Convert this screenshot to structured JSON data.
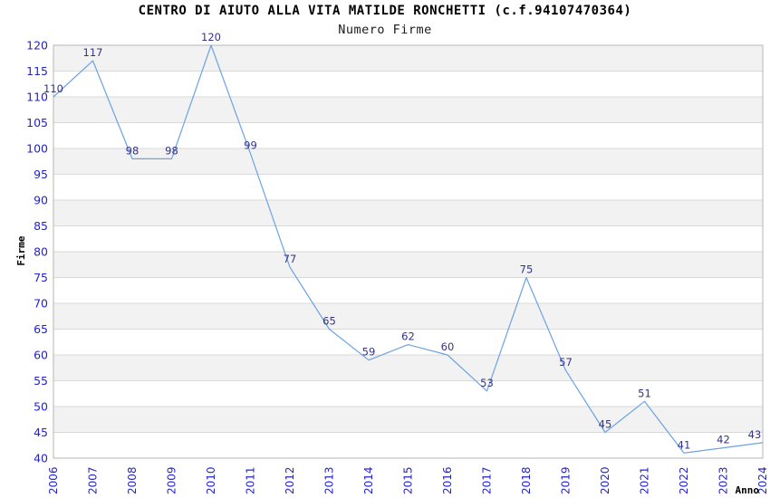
{
  "chart_data": {
    "type": "line",
    "title": "CENTRO DI AIUTO ALLA VITA MATILDE RONCHETTI (c.f.94107470364)",
    "subtitle": "Numero Firme",
    "xlabel": "Anno",
    "ylabel": "Firme",
    "categories": [
      "2006",
      "2007",
      "2008",
      "2009",
      "2010",
      "2011",
      "2012",
      "2013",
      "2014",
      "2015",
      "2016",
      "2017",
      "2018",
      "2019",
      "2020",
      "2021",
      "2022",
      "2023",
      "2024"
    ],
    "values": [
      110,
      117,
      98,
      98,
      120,
      99,
      77,
      65,
      59,
      62,
      60,
      53,
      75,
      57,
      45,
      51,
      41,
      42,
      43
    ],
    "ylim": [
      40,
      120
    ],
    "ytick_step": 5,
    "grid": true,
    "legend": "none",
    "band_fill": "alternating horizontal 5-unit bands",
    "colors": {
      "line": "#6ba3e2",
      "point_label": "#333388",
      "tick_label": "#2323cc",
      "band": "#f2f2f2",
      "grid": "#d9d9d9",
      "border": "#b5b5b5",
      "title": "#000000",
      "background": "#ffffff"
    }
  }
}
